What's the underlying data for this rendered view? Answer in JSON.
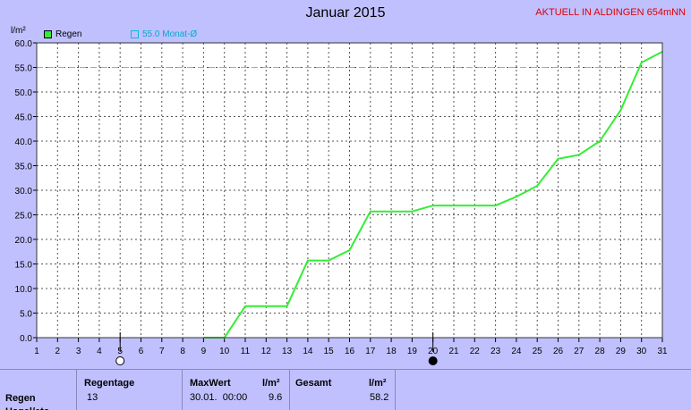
{
  "title": "Januar 2015",
  "station": "AKTUELL IN ALDINGEN 654mNN",
  "legend": {
    "rain": "Regen",
    "avg": "55.0 Monat-Ø"
  },
  "colors": {
    "background": "#c0c0ff",
    "plot_bg": "#ffffff",
    "rain_line": "#33ee33",
    "avg_line": "#33dddd",
    "station_text": "#e00000"
  },
  "chart_data": {
    "type": "line",
    "title": "Januar 2015",
    "ylabel": "l/m²",
    "xlabel": "",
    "x": [
      1,
      2,
      3,
      4,
      5,
      6,
      7,
      8,
      9,
      10,
      11,
      12,
      13,
      14,
      15,
      16,
      17,
      18,
      19,
      20,
      21,
      22,
      23,
      24,
      25,
      26,
      27,
      28,
      29,
      30,
      31
    ],
    "xlim": [
      1,
      31
    ],
    "ylim": [
      0,
      60
    ],
    "yticks": [
      "0.0",
      "5.0",
      "10.0",
      "15.0",
      "20.0",
      "25.0",
      "30.0",
      "35.0",
      "40.0",
      "45.0",
      "50.0",
      "55.0",
      "60.0"
    ],
    "grid": true,
    "series": [
      {
        "name": "Regen",
        "x": [
          9,
          10,
          11,
          12,
          13,
          14,
          15,
          16,
          17,
          18,
          19,
          20,
          21,
          22,
          23,
          24,
          25,
          26,
          27,
          28,
          29,
          30,
          31
        ],
        "values": [
          0,
          0,
          6.4,
          6.4,
          6.4,
          15.7,
          15.7,
          17.8,
          25.7,
          25.7,
          25.7,
          26.9,
          26.9,
          26.9,
          26.9,
          28.7,
          30.9,
          36.4,
          37.2,
          40.0,
          46.3,
          56.0,
          58.2
        ]
      }
    ],
    "reference_line": {
      "name": "55.0 Monat-Ø",
      "value": 55.0
    },
    "moon_markers": [
      {
        "day": 5,
        "phase": "full-moon"
      },
      {
        "day": 20,
        "phase": "new-moon"
      }
    ]
  },
  "stats": {
    "row_label": "Regen",
    "row_label_2": "Hagel/etc",
    "regentage_header": "Regentage",
    "regentage_value": "13",
    "maxwert_header": "MaxWert",
    "maxwert_unit": "l/m²",
    "maxwert_date": "30.01.  00:00",
    "maxwert_value": "9.6",
    "gesamt_header": "Gesamt",
    "gesamt_unit": "l/m²",
    "gesamt_value": "58.2"
  }
}
